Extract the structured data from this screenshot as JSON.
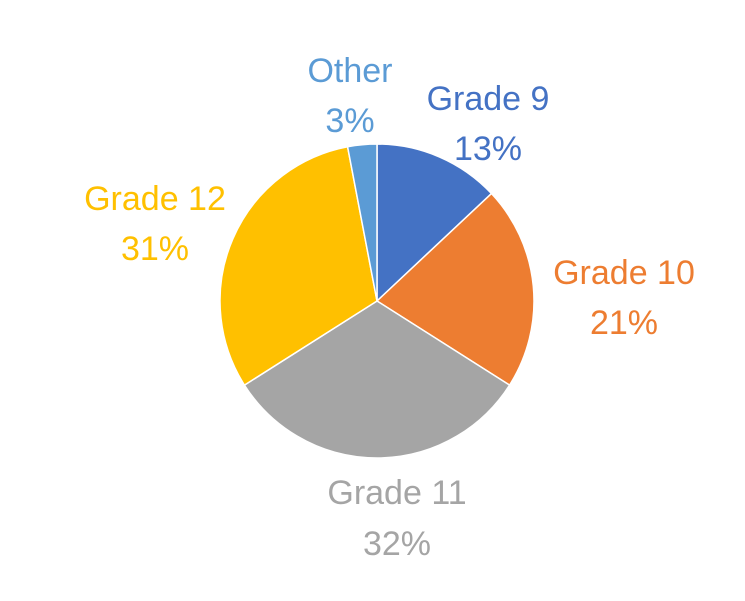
{
  "chart_data": {
    "type": "pie",
    "title": "",
    "start_angle_deg": 0,
    "direction": "clockwise",
    "slices": [
      {
        "label": "Grade 9",
        "value": 13,
        "display": "13%",
        "color": "#4472C4"
      },
      {
        "label": "Grade 10",
        "value": 21,
        "display": "21%",
        "color": "#ED7D31"
      },
      {
        "label": "Grade 11",
        "value": 32,
        "display": "32%",
        "color": "#A5A5A5"
      },
      {
        "label": "Grade 12",
        "value": 31,
        "display": "31%",
        "color": "#FFC000"
      },
      {
        "label": "Other",
        "value": 3,
        "display": "3%",
        "color": "#5B9BD5"
      }
    ],
    "legend": "none",
    "data_labels": "outside, category name and percentage"
  }
}
